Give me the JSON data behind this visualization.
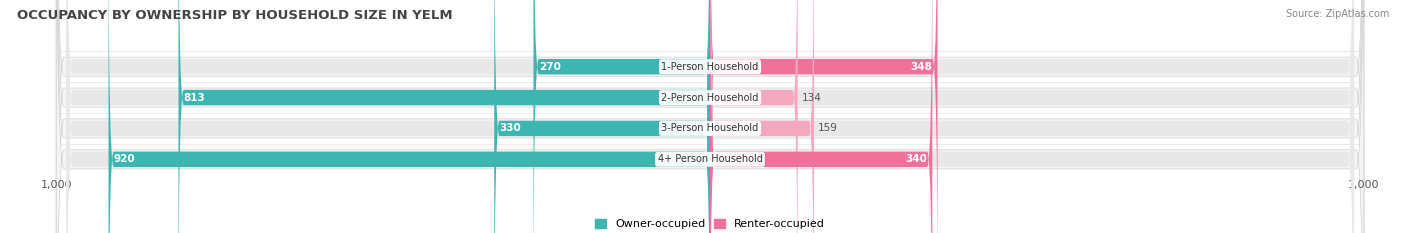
{
  "title": "OCCUPANCY BY OWNERSHIP BY HOUSEHOLD SIZE IN YELM",
  "source": "Source: ZipAtlas.com",
  "categories": [
    "1-Person Household",
    "2-Person Household",
    "3-Person Household",
    "4+ Person Household"
  ],
  "owner_values": [
    270,
    813,
    330,
    920
  ],
  "renter_values": [
    348,
    134,
    159,
    340
  ],
  "owner_color": "#3db5b0",
  "renter_color_dark": "#f0729a",
  "renter_color_light": "#f4a8c0",
  "bar_bg_color": "#e8e8e8",
  "row_bg_color": "#f5f5f5",
  "background_color": "#ffffff",
  "axis_max": 1000,
  "title_fontsize": 9.5,
  "label_fontsize": 7.5,
  "tick_fontsize": 8,
  "legend_fontsize": 8,
  "source_fontsize": 7,
  "value_label_inside_color": "#ffffff",
  "value_label_outside_color": "#555555"
}
